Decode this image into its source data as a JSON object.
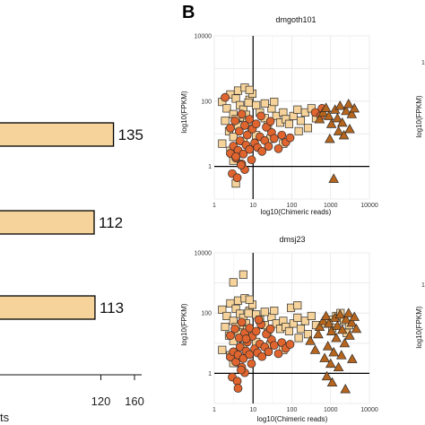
{
  "panel_letter": "B",
  "colors": {
    "light": "#f6d39a",
    "red": "#e0642e",
    "brown": "#b5651d",
    "stroke": "#2a2a2a",
    "grid": "#e6e6e6"
  },
  "chart_data": [
    {
      "type": "bar",
      "orientation": "horizontal",
      "xlim": [
        0,
        160
      ],
      "x_ticks": [
        "120",
        "160"
      ],
      "xlabel_fragment": "ts",
      "values": [
        135,
        112,
        113
      ],
      "value_labels": [
        "135",
        "112",
        "113"
      ]
    },
    {
      "type": "scatter",
      "title": "dmgoth101",
      "xlabel": "log10(Chimeric reads)",
      "ylabel": "log10(FPKM)",
      "x_scale": "log",
      "y_scale": "log",
      "xlim": [
        1,
        10000
      ],
      "ylim": [
        0.1,
        10000
      ],
      "x_ticks": [
        "1",
        "10",
        "100",
        "1000",
        "10000"
      ],
      "y_ticks": [
        "1",
        "100",
        "10000"
      ],
      "reference_lines": {
        "x": 10,
        "y": 1
      },
      "grid": true,
      "series": [
        {
          "marker": "square",
          "color": "light",
          "points": [
            [
              1.6,
              95
            ],
            [
              2.1,
              60
            ],
            [
              2.6,
              160
            ],
            [
              3.1,
              40
            ],
            [
              1.9,
              25
            ],
            [
              3.6,
              120
            ],
            [
              4.6,
              75
            ],
            [
              5.6,
              55
            ],
            [
              6.6,
              38
            ],
            [
              8.1,
              110
            ],
            [
              9.6,
              170
            ],
            [
              2.4,
              12
            ],
            [
              3.1,
              8
            ],
            [
              4.1,
              18
            ],
            [
              5.1,
              32
            ],
            [
              7.1,
              22
            ],
            [
              9.1,
              14
            ],
            [
              12,
              75
            ],
            [
              15,
              45
            ],
            [
              20,
              30
            ],
            [
              24,
              18
            ],
            [
              30,
              60
            ],
            [
              40,
              35
            ],
            [
              50,
              22
            ],
            [
              60,
              45
            ],
            [
              70,
              28
            ],
            [
              85,
              20
            ],
            [
              110,
              35
            ],
            [
              140,
              55
            ],
            [
              170,
              25
            ],
            [
              220,
              45
            ],
            [
              260,
              15
            ],
            [
              320,
              60
            ],
            [
              420,
              30
            ],
            [
              20,
              85
            ],
            [
              35,
              95
            ],
            [
              4.1,
              210
            ],
            [
              6.1,
              260
            ],
            [
              8.1,
              220
            ],
            [
              1.6,
              5
            ],
            [
              2.6,
              3
            ],
            [
              3.6,
              0.3
            ],
            [
              3.1,
              1.5
            ],
            [
              12,
              9
            ],
            [
              28,
              7
            ],
            [
              150,
              12
            ],
            [
              60,
              5
            ],
            [
              3.6,
              28
            ],
            [
              5.6,
              6
            ],
            [
              7.6,
              90
            ]
          ]
        },
        {
          "marker": "circle",
          "color": "red",
          "points": [
            [
              2.6,
              2.5
            ],
            [
              3.1,
              4.2
            ],
            [
              3.6,
              1.8
            ],
            [
              4.1,
              3.1
            ],
            [
              4.6,
              6.1
            ],
            [
              5.1,
              1.2
            ],
            [
              5.6,
              2.4
            ],
            [
              6.1,
              0.8
            ],
            [
              6.6,
              4.5
            ],
            [
              7.1,
              9.2
            ],
            [
              8.1,
              3.3
            ],
            [
              9.1,
              1.6
            ],
            [
              11,
              5.2
            ],
            [
              13,
              3.8
            ],
            [
              15,
              8.1
            ],
            [
              17,
              2.9
            ],
            [
              20,
              6.2
            ],
            [
              25,
              4.1
            ],
            [
              30,
              11
            ],
            [
              35,
              7.2
            ],
            [
              45,
              3.5
            ],
            [
              55,
              9.1
            ],
            [
              70,
              5.5
            ],
            [
              90,
              7.5
            ],
            [
              2.9,
              0.6
            ],
            [
              3.9,
              0.45
            ],
            [
              4.9,
              1.1
            ],
            [
              2.6,
              15
            ],
            [
              3.4,
              25
            ],
            [
              4.4,
              12
            ],
            [
              6.1,
              18
            ],
            [
              8.1,
              28
            ],
            [
              9.6,
              14
            ],
            [
              12,
              20
            ],
            [
              16,
              35
            ],
            [
              22,
              16
            ],
            [
              28,
              24
            ],
            [
              1.9,
              130
            ],
            [
              3.6,
              2
            ],
            [
              5.1,
              40
            ],
            [
              400,
              45
            ],
            [
              600,
              60
            ],
            [
              550,
              35
            ]
          ]
        },
        {
          "marker": "triangle",
          "color": "brown",
          "points": [
            [
              520,
              28
            ],
            [
              640,
              45
            ],
            [
              760,
              62
            ],
            [
              900,
              35
            ],
            [
              1050,
              20
            ],
            [
              1300,
              55
            ],
            [
              1500,
              30
            ],
            [
              1750,
              72
            ],
            [
              2000,
              22
            ],
            [
              2500,
              50
            ],
            [
              2900,
              82
            ],
            [
              3500,
              40
            ],
            [
              4100,
              60
            ],
            [
              1600,
              12
            ],
            [
              950,
              7
            ],
            [
              2200,
              9
            ],
            [
              3100,
              14
            ],
            [
              1200,
              0.42
            ]
          ]
        }
      ]
    },
    {
      "type": "scatter",
      "title": "dmsj23",
      "xlabel": "log10(Chimeric reads)",
      "ylabel": "log10(FPKM)",
      "x_scale": "log",
      "y_scale": "log",
      "xlim": [
        1,
        10000
      ],
      "ylim": [
        0.1,
        10000
      ],
      "x_ticks": [
        "1",
        "10",
        "100",
        "1000",
        "10000"
      ],
      "y_ticks": [
        "1",
        "100",
        "10000"
      ],
      "reference_lines": {
        "x": 10,
        "y": 1
      },
      "grid": true,
      "series": [
        {
          "marker": "square",
          "color": "light",
          "points": [
            [
              5.6,
              1900
            ],
            [
              3.1,
              1050
            ],
            [
              1.6,
              130
            ],
            [
              2.1,
              80
            ],
            [
              2.6,
              210
            ],
            [
              3.1,
              55
            ],
            [
              1.9,
              35
            ],
            [
              3.6,
              140
            ],
            [
              4.6,
              95
            ],
            [
              5.6,
              70
            ],
            [
              6.6,
              45
            ],
            [
              8.1,
              120
            ],
            [
              9.6,
              190
            ],
            [
              2.4,
              18
            ],
            [
              3.1,
              12
            ],
            [
              4.1,
              25
            ],
            [
              5.1,
              40
            ],
            [
              7.1,
              28
            ],
            [
              9.1,
              20
            ],
            [
              12,
              90
            ],
            [
              15,
              60
            ],
            [
              20,
              40
            ],
            [
              24,
              22
            ],
            [
              30,
              75
            ],
            [
              40,
              45
            ],
            [
              50,
              30
            ],
            [
              60,
              55
            ],
            [
              70,
              35
            ],
            [
              85,
              25
            ],
            [
              110,
              45
            ],
            [
              140,
              70
            ],
            [
              170,
              30
            ],
            [
              220,
              55
            ],
            [
              260,
              20
            ],
            [
              320,
              80
            ],
            [
              420,
              40
            ],
            [
              20,
              110
            ],
            [
              35,
              120
            ],
            [
              4.1,
              260
            ],
            [
              6.1,
              310
            ],
            [
              8.1,
              280
            ],
            [
              1.6,
              6
            ],
            [
              2.6,
              4
            ],
            [
              3.1,
              2.2
            ],
            [
              12,
              11
            ],
            [
              28,
              9
            ],
            [
              150,
              15
            ],
            [
              60,
              6
            ],
            [
              3.6,
              35
            ],
            [
              5.6,
              8
            ],
            [
              7.6,
              100
            ],
            [
              95,
              150
            ],
            [
              140,
              180
            ],
            [
              700,
              45
            ],
            [
              900,
              60
            ],
            [
              1400,
              80
            ],
            [
              2200,
              55
            ],
            [
              3000,
              40
            ],
            [
              1800,
              100
            ],
            [
              1100,
              32
            ],
            [
              2600,
              22
            ]
          ]
        },
        {
          "marker": "circle",
          "color": "red",
          "points": [
            [
              2.6,
              3.5
            ],
            [
              3.1,
              5.2
            ],
            [
              3.6,
              2.4
            ],
            [
              4.1,
              4.1
            ],
            [
              4.6,
              7.5
            ],
            [
              5.1,
              1.6
            ],
            [
              5.6,
              3.1
            ],
            [
              6.1,
              1.05
            ],
            [
              6.6,
              5.5
            ],
            [
              7.1,
              11
            ],
            [
              8.1,
              4.2
            ],
            [
              9.1,
              2.1
            ],
            [
              11,
              6.5
            ],
            [
              13,
              4.8
            ],
            [
              15,
              9.5
            ],
            [
              17,
              3.6
            ],
            [
              20,
              7.5
            ],
            [
              25,
              5.2
            ],
            [
              30,
              13
            ],
            [
              35,
              8.5
            ],
            [
              45,
              4.5
            ],
            [
              55,
              10.5
            ],
            [
              70,
              6.8
            ],
            [
              90,
              9.2
            ],
            [
              2.9,
              0.75
            ],
            [
              3.9,
              0.55
            ],
            [
              4.9,
              1.3
            ],
            [
              2.6,
              18
            ],
            [
              3.4,
              30
            ],
            [
              4.4,
              15
            ],
            [
              6.1,
              22
            ],
            [
              8.1,
              32
            ],
            [
              9.6,
              17
            ],
            [
              12,
              25
            ],
            [
              16,
              42
            ],
            [
              22,
              20
            ],
            [
              28,
              30
            ],
            [
              4.1,
              0.32
            ],
            [
              5.1,
              50
            ],
            [
              14,
              60
            ],
            [
              6.6,
              14
            ]
          ]
        },
        {
          "marker": "triangle",
          "color": "brown",
          "points": [
            [
              300,
              12
            ],
            [
              400,
              6
            ],
            [
              480,
              20
            ],
            [
              520,
              35
            ],
            [
              640,
              55
            ],
            [
              700,
              3.2
            ],
            [
              760,
              80
            ],
            [
              850,
              8
            ],
            [
              900,
              45
            ],
            [
              1000,
              2.1
            ],
            [
              1050,
              25
            ],
            [
              1200,
              5
            ],
            [
              1300,
              70
            ],
            [
              1400,
              15
            ],
            [
              1500,
              38
            ],
            [
              1750,
              90
            ],
            [
              1900,
              4
            ],
            [
              2000,
              28
            ],
            [
              2300,
              10
            ],
            [
              2500,
              62
            ],
            [
              2900,
              100
            ],
            [
              3100,
              18
            ],
            [
              3500,
              48
            ],
            [
              4100,
              75
            ],
            [
              4600,
              30
            ],
            [
              1600,
              1.6
            ],
            [
              800,
              0.8
            ],
            [
              2400,
              0.3
            ],
            [
              1100,
              0.5
            ],
            [
              3600,
              3
            ]
          ]
        }
      ]
    }
  ]
}
